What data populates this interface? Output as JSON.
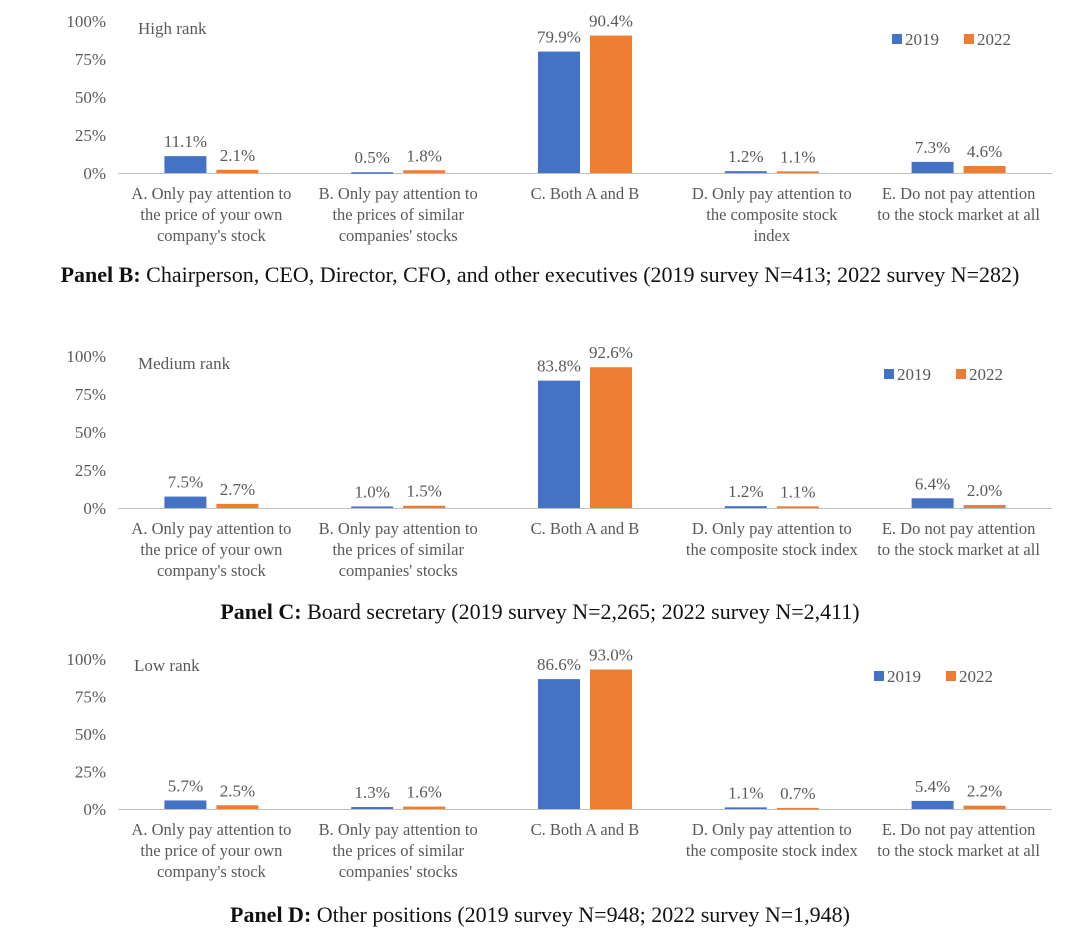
{
  "colors": {
    "series_2019": "#4472C4",
    "series_2022": "#ED7D31",
    "axis": "#bfbfbf",
    "text": "#595959"
  },
  "legend": [
    "2019",
    "2022"
  ],
  "captions": [
    {
      "label": "Panel B:",
      "text": " Chairperson, CEO, Director, CFO, and other executives (2019 survey N=413; 2022 survey N=282)"
    },
    {
      "label": "Panel C:",
      "text": " Board secretary (2019 survey N=2,265; 2022 survey N=2,411)"
    },
    {
      "label": "Panel D:",
      "text": " Other positions (2019 survey N=948; 2022 survey N=1,948)"
    }
  ],
  "chart_data": [
    {
      "type": "bar",
      "title": "High rank",
      "yticks": [
        "0%",
        "25%",
        "50%",
        "75%",
        "100%"
      ],
      "ylim": [
        0,
        100
      ],
      "categories": [
        [
          "A. Only pay attention to",
          "the price of your own",
          "company's stock"
        ],
        [
          "B. Only pay attention to",
          "the prices of similar",
          "companies' stocks"
        ],
        [
          "C.  Both A and B"
        ],
        [
          "D. Only pay attention to",
          "the composite stock",
          "index"
        ],
        [
          "E.  Do not pay attention",
          "to the stock market at all"
        ]
      ],
      "series": [
        {
          "name": "2019",
          "values": [
            11.1,
            0.5,
            79.9,
            1.2,
            7.3
          ],
          "labels": [
            "11.1%",
            "0.5%",
            "79.9%",
            "1.2%",
            "7.3%"
          ]
        },
        {
          "name": "2022",
          "values": [
            2.1,
            1.8,
            90.4,
            1.1,
            4.6
          ],
          "labels": [
            "2.1%",
            "1.8%",
            "90.4%",
            "1.1%",
            "4.6%"
          ]
        }
      ]
    },
    {
      "type": "bar",
      "title": "Medium rank",
      "yticks": [
        "0%",
        "25%",
        "50%",
        "75%",
        "100%"
      ],
      "ylim": [
        0,
        100
      ],
      "categories": [
        [
          "A. Only pay attention to",
          "the price of your own",
          "company's stock"
        ],
        [
          "B. Only pay attention to",
          "the prices of similar",
          "companies' stocks"
        ],
        [
          "C.  Both A and B"
        ],
        [
          "D. Only pay attention to",
          "the composite stock index"
        ],
        [
          "E.  Do not pay attention",
          "to the stock market at all"
        ]
      ],
      "series": [
        {
          "name": "2019",
          "values": [
            7.5,
            1.0,
            83.8,
            1.2,
            6.4
          ],
          "labels": [
            "7.5%",
            "1.0%",
            "83.8%",
            "1.2%",
            "6.4%"
          ]
        },
        {
          "name": "2022",
          "values": [
            2.7,
            1.5,
            92.6,
            1.1,
            2.0
          ],
          "labels": [
            "2.7%",
            "1.5%",
            "92.6%",
            "1.1%",
            "2.0%"
          ]
        }
      ]
    },
    {
      "type": "bar",
      "title": "Low rank",
      "yticks": [
        "0%",
        "25%",
        "50%",
        "75%",
        "100%"
      ],
      "ylim": [
        0,
        100
      ],
      "categories": [
        [
          "A. Only pay attention to",
          "the price of your own",
          "company's stock"
        ],
        [
          "B. Only pay attention to",
          "the prices of similar",
          "companies' stocks"
        ],
        [
          "C.  Both A and B"
        ],
        [
          "D. Only pay attention to",
          "the composite stock index"
        ],
        [
          "E.  Do not pay attention",
          "to the stock market at all"
        ]
      ],
      "series": [
        {
          "name": "2019",
          "values": [
            5.7,
            1.3,
            86.6,
            1.1,
            5.4
          ],
          "labels": [
            "5.7%",
            "1.3%",
            "86.6%",
            "1.1%",
            "5.4%"
          ]
        },
        {
          "name": "2022",
          "values": [
            2.5,
            1.6,
            93.0,
            0.7,
            2.2
          ],
          "labels": [
            "2.5%",
            "1.6%",
            "93.0%",
            "0.7%",
            "2.2%"
          ]
        }
      ]
    }
  ]
}
